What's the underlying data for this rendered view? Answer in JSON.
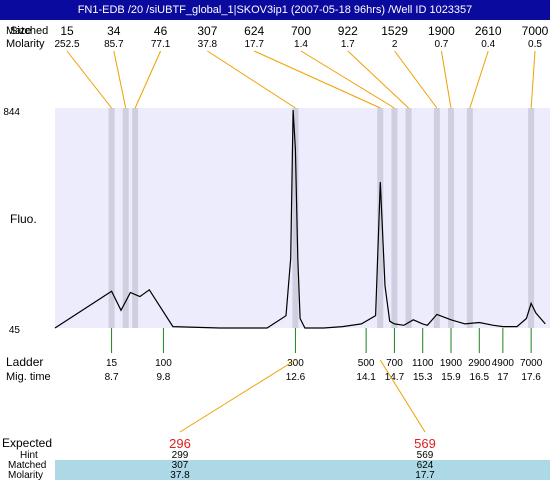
{
  "title": "FN1-EDB /20 /siUBTF_global_1|SKOV3ip1 (2007-05-18 96hrs) /Well ID 1023357",
  "left_labels": {
    "matched": "Matched",
    "size": "Size",
    "molarity": "Molarity",
    "fluo": "Fluo.",
    "ladder": "Ladder",
    "mig_time": "Mig. time",
    "expected": "Expected",
    "hint": "Hint",
    "matched_bottom": "Matched",
    "molarity_bottom": "Molarity"
  },
  "axis": {
    "ymax_label": "844",
    "ymin_label": "45"
  },
  "chart_data": {
    "type": "line",
    "x": [
      7.5,
      8.7,
      8.9,
      9.1,
      9.3,
      9.5,
      10,
      11,
      12,
      12.4,
      12.5,
      12.55,
      12.6,
      12.65,
      12.7,
      12.8,
      13.2,
      13.6,
      14.0,
      14.3,
      14.4,
      14.5,
      14.6,
      14.7,
      14.9,
      15.1,
      15.3,
      15.4,
      15.6,
      15.9,
      16.2,
      16.5,
      16.8,
      17.0,
      17.3,
      17.5,
      17.6,
      17.7,
      17.9
    ],
    "y": [
      45,
      180,
      110,
      175,
      160,
      185,
      50,
      45,
      45,
      90,
      300,
      844,
      700,
      300,
      80,
      45,
      45,
      50,
      60,
      90,
      580,
      200,
      70,
      60,
      55,
      75,
      60,
      55,
      95,
      75,
      60,
      65,
      55,
      50,
      50,
      80,
      135,
      100,
      60
    ],
    "ylim": [
      45,
      844
    ],
    "xlim": [
      7.5,
      18.0
    ],
    "top_peaks": [
      {
        "size": "15",
        "molarity": "252.5",
        "time": 8.7
      },
      {
        "size": "34",
        "molarity": "85.7",
        "time": 9.0
      },
      {
        "size": "46",
        "molarity": "77.1",
        "time": 9.2
      },
      {
        "size": "307",
        "molarity": "37.8",
        "time": 12.6
      },
      {
        "size": "624",
        "molarity": "17.7",
        "time": 14.4
      },
      {
        "size": "700",
        "molarity": "1.4",
        "time": 14.7
      },
      {
        "size": "922",
        "molarity": "1.7",
        "time": 15.0
      },
      {
        "size": "1529",
        "molarity": "2",
        "time": 15.6
      },
      {
        "size": "1900",
        "molarity": "0.7",
        "time": 15.9
      },
      {
        "size": "2610",
        "molarity": "0.4",
        "time": 16.3
      },
      {
        "size": "7000",
        "molarity": "0.5",
        "time": 17.6
      }
    ],
    "ladder": [
      {
        "size": "15",
        "time": "8.7",
        "t": 8.7
      },
      {
        "size": "100",
        "time": "9.8",
        "t": 9.8
      },
      {
        "size": "300",
        "time": "12.6",
        "t": 12.6
      },
      {
        "size": "500",
        "time": "14.1",
        "t": 14.1
      },
      {
        "size": "700",
        "time": "14.7",
        "t": 14.7
      },
      {
        "size": "1100",
        "time": "15.3",
        "t": 15.3
      },
      {
        "size": "1900",
        "time": "15.9",
        "t": 15.9
      },
      {
        "size": "2900",
        "time": "16.5",
        "t": 16.5
      },
      {
        "size": "4900",
        "time": "17",
        "t": 17.0
      },
      {
        "size": "7000",
        "time": "17.6",
        "t": 17.6
      }
    ],
    "expected": [
      {
        "expected": "296",
        "hint": "299",
        "matched": "307",
        "molarity": "37.8"
      },
      {
        "expected": "569",
        "hint": "569",
        "matched": "624",
        "molarity": "17.7"
      }
    ]
  },
  "colors": {
    "title_bg": "#0a0a9e",
    "plot_bg": "#ececfc",
    "band": "#cfcfdf",
    "connector": "#f0a000",
    "ladder_tick": "#208020",
    "expected_text": "#e02020",
    "table_bg": "#add8e6"
  }
}
